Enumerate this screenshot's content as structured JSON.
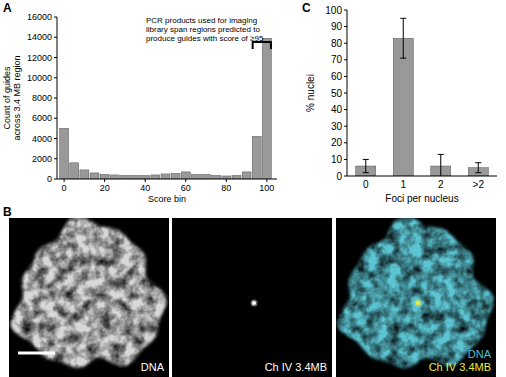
{
  "chart_data": [
    {
      "type": "histogram",
      "title": "A",
      "annotation": [
        "PCR products used for imaging",
        "library span regions predicted to",
        "produce guides with score of ≥95"
      ],
      "x_label": "Score bin",
      "y_label": [
        "Count of guides",
        "across 3.4 MB region"
      ],
      "bins": [
        -2.5,
        2.5,
        7.5,
        12.5,
        17.5,
        22.5,
        27.5,
        32.5,
        37.5,
        42.5,
        47.5,
        52.5,
        57.5,
        62.5,
        67.5,
        72.5,
        77.5,
        82.5,
        87.5,
        92.5,
        97.5,
        102.5
      ],
      "values": [
        5000,
        1600,
        900,
        600,
        450,
        400,
        350,
        350,
        350,
        400,
        500,
        550,
        700,
        450,
        450,
        350,
        300,
        350,
        700,
        4200,
        13900
      ],
      "color": "#999999",
      "xlim": [
        -3.5,
        105
      ],
      "xticks": [
        0,
        20,
        40,
        60,
        80,
        100
      ],
      "ylim": [
        0,
        16000
      ],
      "yticks": [
        0,
        2000,
        4000,
        6000,
        8000,
        10000,
        12000,
        14000,
        16000
      ]
    },
    {
      "type": "bar",
      "title": "C",
      "x_label": "Foci per nucleus",
      "y_label": "% nuclei",
      "categories": [
        "0",
        "1",
        "2",
        ">2"
      ],
      "values": [
        6,
        83,
        6,
        5
      ],
      "errors": [
        4,
        12,
        7,
        3
      ],
      "color": "#999999",
      "ylim": [
        0,
        100
      ],
      "yticks": [
        0,
        10,
        20,
        30,
        40,
        50,
        60,
        70,
        80,
        90,
        100
      ]
    }
  ],
  "image_panel": {
    "title": "B",
    "frames": [
      {
        "captions": [
          "DNA"
        ]
      },
      {
        "captions": [
          "Ch IV 3.4MB"
        ]
      },
      {
        "captions": [
          "DNA",
          "Ch IV 3.4MB"
        ]
      }
    ]
  }
}
